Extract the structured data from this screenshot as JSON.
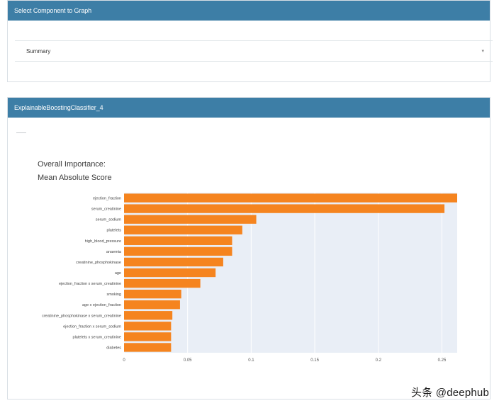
{
  "select_panel": {
    "header": "Select Component to Graph",
    "dropdown_value": "Summary",
    "dropdown_arrow": "▾"
  },
  "graph_panel": {
    "header": "ExplainableBoostingClassifier_4",
    "title_line1": "Overall Importance:",
    "title_line2": "Mean Absolute Score"
  },
  "watermark": "头条 @deephub",
  "colors": {
    "header_bg": "#3d7ea6",
    "bar": "#f5841f",
    "plot_bg": "#e9eef6"
  },
  "chart_data": {
    "type": "bar",
    "orientation": "horizontal",
    "title": "Overall Importance: Mean Absolute Score",
    "categories": [
      "ejection_fraction",
      "serum_creatinine",
      "serum_sodium",
      "platelets",
      "high_blood_pressure",
      "anaemia",
      "creatinine_phosphokinase",
      "age",
      "ejection_fraction x serum_creatinine",
      "smoking",
      "age x ejection_fraction",
      "creatinine_phosphokinase x serum_creatinine",
      "ejection_fraction x serum_sodium",
      "platelets x serum_creatinine",
      "diabetes"
    ],
    "values": [
      0.262,
      0.252,
      0.104,
      0.093,
      0.085,
      0.085,
      0.078,
      0.072,
      0.06,
      0.045,
      0.044,
      0.038,
      0.037,
      0.037,
      0.037
    ],
    "xlim": [
      0,
      0.262
    ],
    "xticks": [
      0,
      0.05,
      0.1,
      0.15,
      0.2,
      0.25
    ],
    "xtick_labels": [
      "0",
      "0.05",
      "0.1",
      "0.15",
      "0.2",
      "0.25"
    ]
  }
}
